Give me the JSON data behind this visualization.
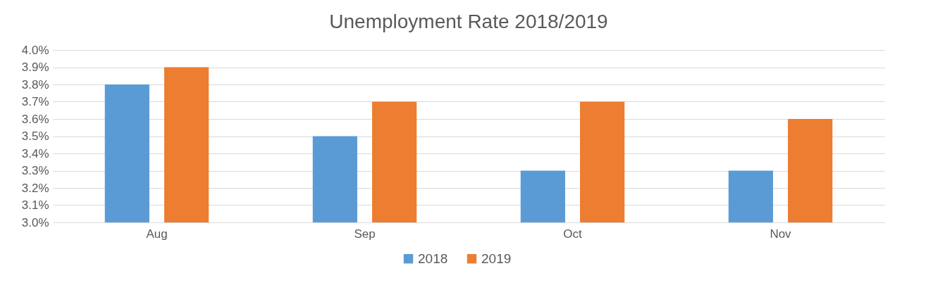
{
  "chart_data": {
    "type": "bar",
    "title": "Unemployment Rate 2018/2019",
    "categories": [
      "Aug",
      "Sep",
      "Oct",
      "Nov"
    ],
    "series": [
      {
        "name": "2018",
        "color": "#5b9bd5",
        "values": [
          3.8,
          3.5,
          3.3,
          3.3
        ]
      },
      {
        "name": "2019",
        "color": "#ed7d31",
        "values": [
          3.9,
          3.7,
          3.7,
          3.6
        ]
      }
    ],
    "ylim": [
      3.0,
      4.0
    ],
    "yticks": [
      {
        "value": 3.0,
        "label": "3.0%"
      },
      {
        "value": 3.1,
        "label": "3.1%"
      },
      {
        "value": 3.2,
        "label": "3.2%"
      },
      {
        "value": 3.3,
        "label": "3.3%"
      },
      {
        "value": 3.4,
        "label": "3.4%"
      },
      {
        "value": 3.5,
        "label": "3.5%"
      },
      {
        "value": 3.6,
        "label": "3.6%"
      },
      {
        "value": 3.7,
        "label": "3.7%"
      },
      {
        "value": 3.8,
        "label": "3.8%"
      },
      {
        "value": 3.9,
        "label": "3.9%"
      },
      {
        "value": 4.0,
        "label": "4.0%"
      }
    ],
    "grid": "y",
    "legend": "bottom"
  }
}
